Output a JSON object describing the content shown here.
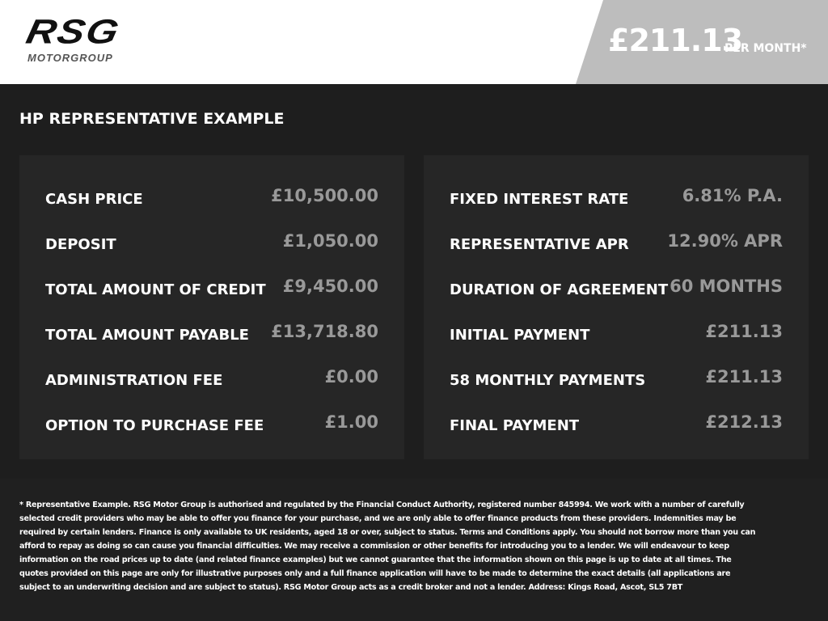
{
  "header": {
    "logo": {
      "mark": "RSG",
      "sub": "MOTORGROUP"
    },
    "price": "£211.13",
    "price_suffix": "PER MONTH*"
  },
  "section": {
    "title": "HP REPRESENTATIVE EXAMPLE",
    "left": [
      [
        "CASH PRICE",
        "£10,500.00"
      ],
      [
        "DEPOSIT",
        "£1,050.00"
      ],
      [
        "TOTAL AMOUNT OF CREDIT",
        "£9,450.00"
      ],
      [
        "TOTAL AMOUNT PAYABLE",
        "£13,718.80"
      ],
      [
        "ADMINISTRATION FEE",
        "£0.00"
      ],
      [
        "OPTION TO PURCHASE FEE",
        "£1.00"
      ]
    ],
    "right": [
      [
        "FIXED INTEREST RATE",
        "6.81% P.A."
      ],
      [
        "REPRESENTATIVE APR",
        "12.90% APR"
      ],
      [
        "DURATION OF AGREEMENT",
        "60 MONTHS"
      ],
      [
        "INITIAL PAYMENT",
        "£211.13"
      ],
      [
        "58 MONTHLY PAYMENTS",
        "£211.13"
      ],
      [
        "FINAL PAYMENT",
        "£212.13"
      ]
    ]
  },
  "footer": {
    "text": "* Representative Example. RSG Motor Group is authorised and regulated by the Financial Conduct Authority, registered number 845994. We work with a number of carefully selected credit providers who may be able to offer you finance for your purchase, and we are only able to offer finance products from these providers. Indemnities may be required by certain lenders. Finance is only available to UK residents, aged 18 or over, subject to status. Terms and Conditions apply. You should not borrow more than you can afford to repay as doing so can cause you financial difficulties. We may receive a commission or other benefits for introducing you to a lender. We will endeavour to keep information on the road prices up to date (and related finance examples) but we cannot guarantee that the information shown on this page is up to date at all times. The quotes provided on this page are only for illustrative purposes only and a full finance application will have to be made to determine the exact details (all applications are subject to an underwriting decision and are subject to status). RSG Motor Group acts as a credit broker and not a lender. Address: Kings Road, Ascot, SL5 7BT"
  }
}
